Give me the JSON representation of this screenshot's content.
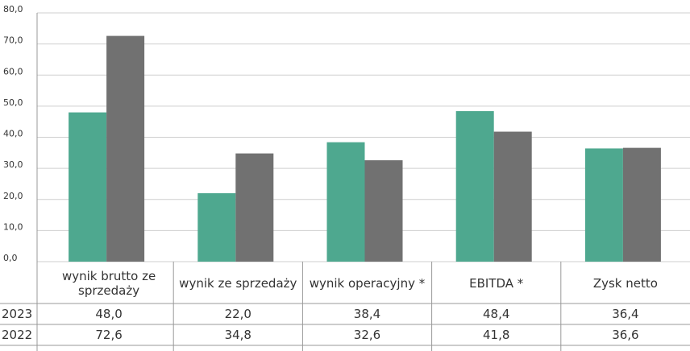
{
  "chart_data": {
    "type": "bar",
    "categories": [
      "wynik brutto ze sprzedaży",
      "wynik ze sprzedaży",
      "wynik operacyjny *",
      "EBITDA *",
      "Zysk netto"
    ],
    "series": [
      {
        "name": "2023",
        "color": "#4ea88f",
        "values": [
          48.0,
          22.0,
          38.4,
          48.4,
          36.4
        ],
        "value_labels": [
          "48,0",
          "22,0",
          "38,4",
          "48,4",
          "36,4"
        ]
      },
      {
        "name": "2022",
        "color": "#717171",
        "values": [
          72.6,
          34.8,
          32.6,
          41.8,
          36.6
        ],
        "value_labels": [
          "72,6",
          "34,8",
          "32,6",
          "41,8",
          "36,6"
        ]
      }
    ],
    "ylim": [
      0,
      80
    ],
    "yticks": [
      {
        "value": 0,
        "label": "0,0"
      },
      {
        "value": 10,
        "label": "10,0"
      },
      {
        "value": 20,
        "label": "20,0"
      },
      {
        "value": 30,
        "label": "30,0"
      },
      {
        "value": 40,
        "label": "40,0"
      },
      {
        "value": 50,
        "label": "50,0"
      },
      {
        "value": 60,
        "label": "60,0"
      },
      {
        "value": 70,
        "label": "70,0"
      },
      {
        "value": 80,
        "label": "80,0"
      }
    ],
    "grid": true
  }
}
